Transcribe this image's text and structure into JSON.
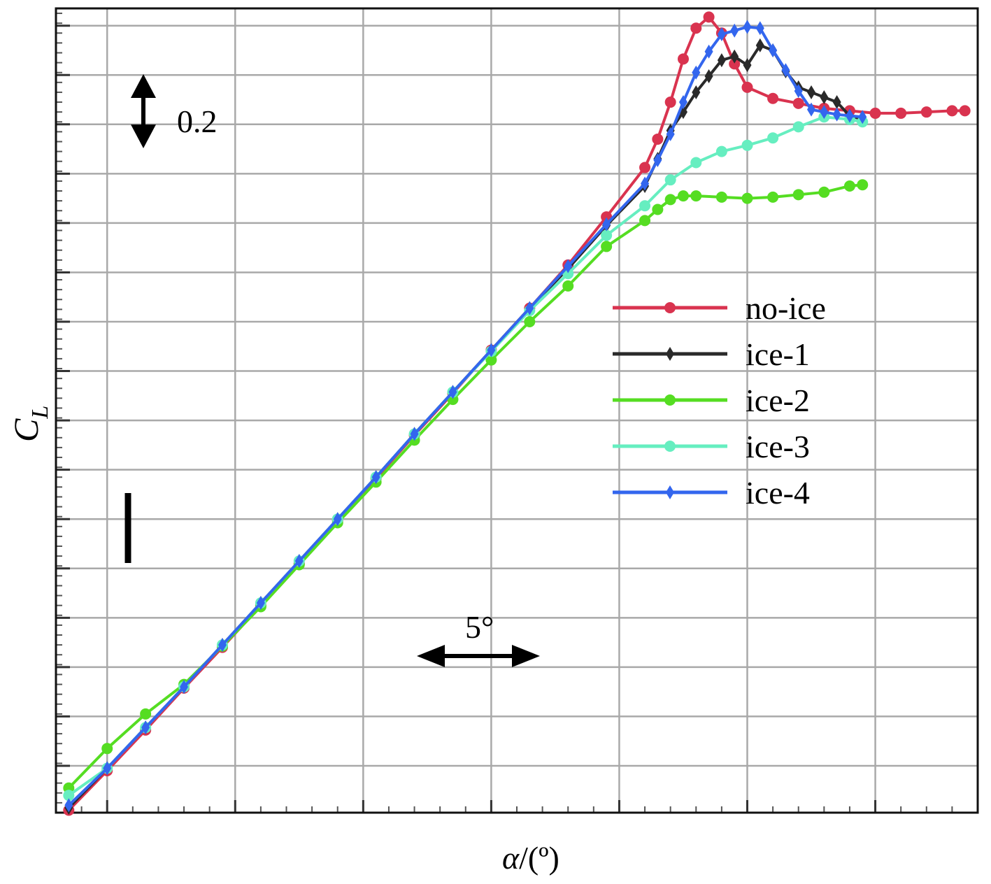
{
  "chart_data": {
    "type": "line",
    "xlabel_symbol": "α",
    "xlabel_unit": "/(º)",
    "ylabel_main": "C",
    "ylabel_sub": "L",
    "xlim": [
      -7,
      29
    ],
    "ylim": [
      -2.29,
      0.97
    ],
    "grid": true,
    "legend_position": "right-middle",
    "annotations": {
      "y_scale_label": "0.2",
      "x_scale_label": "5°"
    },
    "series": [
      {
        "name": "no-ice",
        "color": "#d9334f",
        "marker": "circle",
        "x": [
          -6.5,
          -5,
          -3.5,
          -2,
          -0.5,
          1,
          2.5,
          4,
          5.5,
          7,
          8.5,
          10,
          11.5,
          13,
          14.5,
          16,
          16.5,
          17,
          17.5,
          18,
          18.5,
          19,
          19.5,
          20,
          21,
          22,
          23,
          24,
          25,
          26,
          27,
          28,
          28.5
        ],
        "y": [
          -2.28,
          -2.12,
          -1.955,
          -1.785,
          -1.62,
          -1.45,
          -1.28,
          -1.105,
          -0.935,
          -0.76,
          -0.59,
          -0.415,
          -0.245,
          -0.07,
          0.125,
          0.325,
          0.44,
          0.59,
          0.765,
          0.89,
          0.935,
          0.87,
          0.745,
          0.65,
          0.605,
          0.585,
          0.565,
          0.555,
          0.545,
          0.545,
          0.55,
          0.555,
          0.555
        ]
      },
      {
        "name": "ice-1",
        "color": "#2a2a2a",
        "marker": "diamond",
        "x": [
          -6.5,
          -5,
          -3.5,
          -2,
          -0.5,
          1,
          2.5,
          4,
          5.5,
          7,
          8.5,
          10,
          11.5,
          13,
          14.5,
          16,
          16.5,
          17,
          17.5,
          18,
          18.5,
          19,
          19.5,
          20,
          20.5,
          21,
          21.5,
          22,
          22.5,
          23,
          23.5,
          24,
          24.5
        ],
        "y": [
          -2.27,
          -2.11,
          -1.945,
          -1.78,
          -1.61,
          -1.44,
          -1.27,
          -1.1,
          -0.93,
          -0.755,
          -0.585,
          -0.415,
          -0.245,
          -0.085,
          0.09,
          0.25,
          0.36,
          0.475,
          0.55,
          0.63,
          0.695,
          0.76,
          0.775,
          0.74,
          0.82,
          0.8,
          0.715,
          0.65,
          0.63,
          0.61,
          0.59,
          0.535,
          0.52
        ]
      },
      {
        "name": "ice-2",
        "color": "#55dd22",
        "marker": "circle",
        "x": [
          -6.5,
          -5,
          -3.5,
          -2,
          -0.5,
          1,
          2.5,
          4,
          5.5,
          7,
          8.5,
          10,
          11.5,
          13,
          14.5,
          16,
          16.5,
          17,
          17.5,
          18,
          19,
          20,
          21,
          22,
          23,
          24,
          24.5
        ],
        "y": [
          -2.19,
          -2.03,
          -1.89,
          -1.77,
          -1.615,
          -1.455,
          -1.285,
          -1.115,
          -0.95,
          -0.78,
          -0.615,
          -0.455,
          -0.3,
          -0.155,
          0.005,
          0.11,
          0.155,
          0.195,
          0.21,
          0.21,
          0.205,
          0.2,
          0.205,
          0.215,
          0.225,
          0.25,
          0.255
        ]
      },
      {
        "name": "ice-3",
        "color": "#66eec0",
        "marker": "circle",
        "x": [
          -6.5,
          -5,
          -3.5,
          -2,
          -0.5,
          1,
          2.5,
          4,
          5.5,
          7,
          8.5,
          10,
          11.5,
          13,
          14.5,
          16,
          17,
          18,
          19,
          20,
          21,
          22,
          23,
          24,
          24.5
        ],
        "y": [
          -2.22,
          -2.11,
          -1.945,
          -1.78,
          -1.61,
          -1.44,
          -1.27,
          -1.1,
          -0.93,
          -0.755,
          -0.585,
          -0.42,
          -0.255,
          -0.105,
          0.05,
          0.17,
          0.275,
          0.345,
          0.39,
          0.415,
          0.445,
          0.49,
          0.53,
          0.52,
          0.51
        ]
      },
      {
        "name": "ice-4",
        "color": "#3366ee",
        "marker": "diamond",
        "x": [
          -6.5,
          -5,
          -3.5,
          -2,
          -0.5,
          1,
          2.5,
          4,
          5.5,
          7,
          8.5,
          10,
          11.5,
          13,
          14.5,
          16,
          16.5,
          17,
          17.5,
          18,
          18.5,
          19,
          19.5,
          20,
          20.5,
          21,
          21.5,
          22,
          22.5,
          23,
          23.5,
          24,
          24.5
        ],
        "y": [
          -2.26,
          -2.11,
          -1.945,
          -1.78,
          -1.61,
          -1.44,
          -1.27,
          -1.1,
          -0.93,
          -0.755,
          -0.585,
          -0.415,
          -0.245,
          -0.075,
          0.095,
          0.26,
          0.355,
          0.46,
          0.59,
          0.71,
          0.795,
          0.865,
          0.88,
          0.895,
          0.89,
          0.8,
          0.72,
          0.635,
          0.56,
          0.55,
          0.54,
          0.535,
          0.53
        ]
      }
    ]
  }
}
